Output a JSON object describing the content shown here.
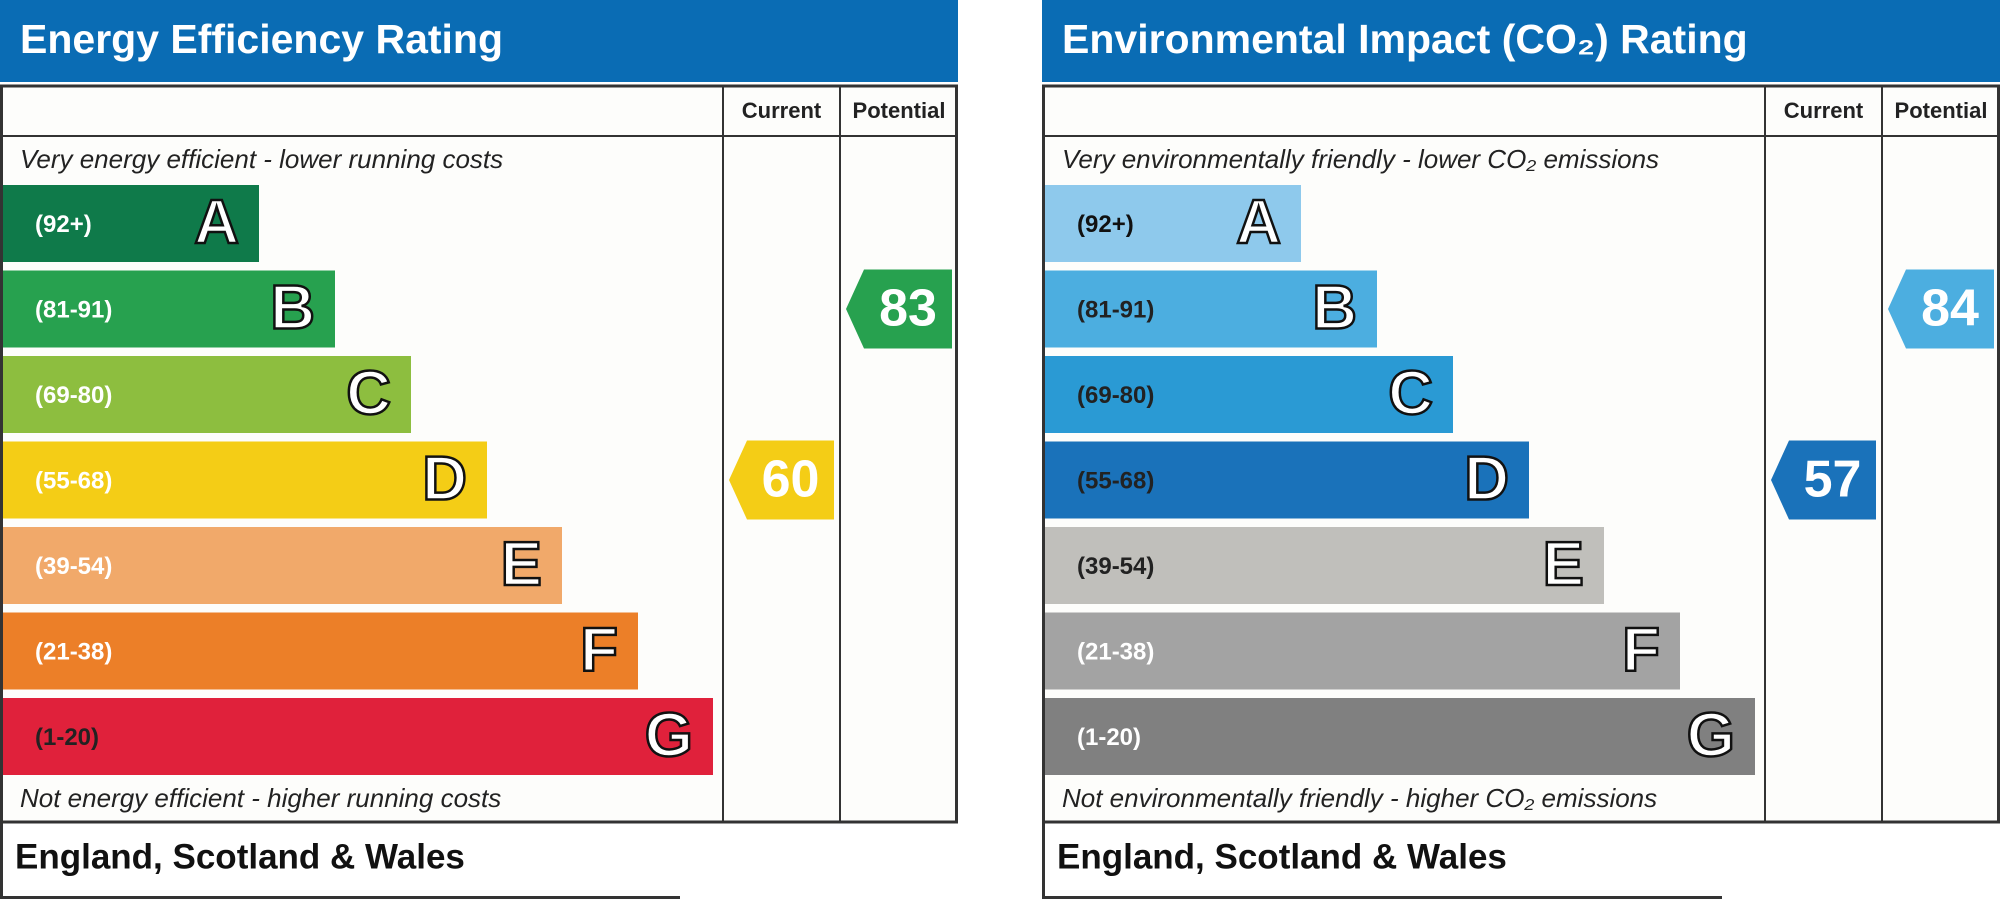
{
  "panels": [
    {
      "title": "Energy Efficiency Rating",
      "headers": [
        "Current",
        "Potential"
      ],
      "top_note": "Very energy efficient - lower running costs",
      "bottom_note": "Not energy efficient - higher running costs",
      "footer": "England, Scotland & Wales",
      "bands": [
        {
          "range": "(92+)",
          "letter": "A",
          "color": "#0f7a4a",
          "text_color": "#ffffff"
        },
        {
          "range": "(81-91)",
          "letter": "B",
          "color": "#27a14f",
          "text_color": "#ffffff"
        },
        {
          "range": "(69-80)",
          "letter": "C",
          "color": "#8dbe3f",
          "text_color": "#ffffff"
        },
        {
          "range": "(55-68)",
          "letter": "D",
          "color": "#f4cd16",
          "text_color": "#ffffff"
        },
        {
          "range": "(39-54)",
          "letter": "E",
          "color": "#f1a96a",
          "text_color": "#ffffff"
        },
        {
          "range": "(21-38)",
          "letter": "F",
          "color": "#ec7f28",
          "text_color": "#ffffff"
        },
        {
          "range": "(1-20)",
          "letter": "G",
          "color": "#e0213b",
          "text_color": "#222222"
        }
      ],
      "current": 60,
      "potential": 83
    },
    {
      "title": "Environmental Impact (CO₂) Rating",
      "headers": [
        "Current",
        "Potential"
      ],
      "top_note": "Very environmentally friendly - lower CO₂ emissions",
      "bottom_note": "Not environmentally friendly - higher CO₂ emissions",
      "footer": "England, Scotland & Wales",
      "bands": [
        {
          "range": "(92+)",
          "letter": "A",
          "color": "#8ec9ec",
          "text_color": "#111111"
        },
        {
          "range": "(81-91)",
          "letter": "B",
          "color": "#4caee0",
          "text_color": "#222222"
        },
        {
          "range": "(69-80)",
          "letter": "C",
          "color": "#2a9ad4",
          "text_color": "#222222"
        },
        {
          "range": "(55-68)",
          "letter": "D",
          "color": "#1a72ba",
          "text_color": "#222222"
        },
        {
          "range": "(39-54)",
          "letter": "E",
          "color": "#c0bfbb",
          "text_color": "#222222"
        },
        {
          "range": "(21-38)",
          "letter": "F",
          "color": "#a3a3a3",
          "text_color": "#ffffff"
        },
        {
          "range": "(1-20)",
          "letter": "G",
          "color": "#808080",
          "text_color": "#ffffff"
        }
      ],
      "current": 57,
      "potential": 84
    }
  ]
}
